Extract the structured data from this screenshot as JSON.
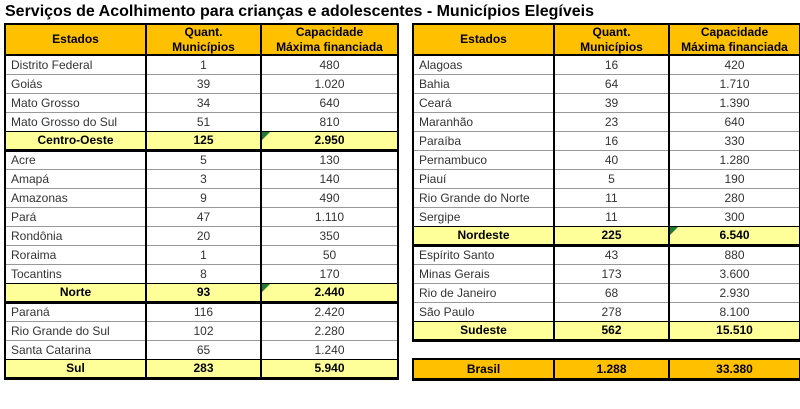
{
  "title": "Serviços de Acolhimento para crianças e adolescentes - Municípios Elegíveis",
  "colors": {
    "header_bg": "#FFC000",
    "subtotal_bg": "#FFFF99",
    "total_bg": "#FFC000",
    "flag_green": "#1E7B34"
  },
  "columns": {
    "estados": "Estados",
    "quant": "Quant.\nMunicípios",
    "cap": "Capacidade\nMáxima financiada"
  },
  "left_table": {
    "rows": [
      {
        "type": "data",
        "estado": "Distrito Federal",
        "quant": "1",
        "cap": "480"
      },
      {
        "type": "data",
        "estado": "Goiás",
        "quant": "39",
        "cap": "1.020"
      },
      {
        "type": "data",
        "estado": "Mato Grosso",
        "quant": "34",
        "cap": "640"
      },
      {
        "type": "data",
        "estado": "Mato Grosso do Sul",
        "quant": "51",
        "cap": "810"
      },
      {
        "type": "subtotal",
        "estado": "Centro-Oeste",
        "quant": "125",
        "cap": "2.950",
        "marker": true
      },
      {
        "type": "data",
        "estado": "Acre",
        "quant": "5",
        "cap": "130"
      },
      {
        "type": "data",
        "estado": "Amapá",
        "quant": "3",
        "cap": "140"
      },
      {
        "type": "data",
        "estado": "Amazonas",
        "quant": "9",
        "cap": "490"
      },
      {
        "type": "data",
        "estado": "Pará",
        "quant": "47",
        "cap": "1.110"
      },
      {
        "type": "data",
        "estado": "Rondônia",
        "quant": "20",
        "cap": "350"
      },
      {
        "type": "data",
        "estado": "Roraima",
        "quant": "1",
        "cap": "50"
      },
      {
        "type": "data",
        "estado": "Tocantins",
        "quant": "8",
        "cap": "170"
      },
      {
        "type": "subtotal",
        "estado": "Norte",
        "quant": "93",
        "cap": "2.440",
        "marker": true
      },
      {
        "type": "data",
        "estado": "Paraná",
        "quant": "116",
        "cap": "2.420"
      },
      {
        "type": "data",
        "estado": "Rio Grande do Sul",
        "quant": "102",
        "cap": "2.280"
      },
      {
        "type": "data",
        "estado": "Santa Catarina",
        "quant": "65",
        "cap": "1.240"
      },
      {
        "type": "subtotal",
        "estado": "Sul",
        "quant": "283",
        "cap": "5.940",
        "marker": false
      }
    ]
  },
  "right_table": {
    "rows": [
      {
        "type": "data",
        "estado": "Alagoas",
        "quant": "16",
        "cap": "420"
      },
      {
        "type": "data",
        "estado": "Bahia",
        "quant": "64",
        "cap": "1.710"
      },
      {
        "type": "data",
        "estado": "Ceará",
        "quant": "39",
        "cap": "1.390"
      },
      {
        "type": "data",
        "estado": "Maranhão",
        "quant": "23",
        "cap": "640"
      },
      {
        "type": "data",
        "estado": "Paraíba",
        "quant": "16",
        "cap": "330"
      },
      {
        "type": "data",
        "estado": "Pernambuco",
        "quant": "40",
        "cap": "1.280"
      },
      {
        "type": "data",
        "estado": "Piauí",
        "quant": "5",
        "cap": "190"
      },
      {
        "type": "data",
        "estado": "Rio Grande do Norte",
        "quant": "11",
        "cap": "280"
      },
      {
        "type": "data",
        "estado": "Sergipe",
        "quant": "11",
        "cap": "300"
      },
      {
        "type": "subtotal",
        "estado": "Nordeste",
        "quant": "225",
        "cap": "6.540",
        "marker": true
      },
      {
        "type": "data",
        "estado": "Espírito Santo",
        "quant": "43",
        "cap": "880"
      },
      {
        "type": "data",
        "estado": "Minas Gerais",
        "quant": "173",
        "cap": "3.600"
      },
      {
        "type": "data",
        "estado": "Rio de Janeiro",
        "quant": "68",
        "cap": "2.930"
      },
      {
        "type": "data",
        "estado": "São Paulo",
        "quant": "278",
        "cap": "8.100"
      },
      {
        "type": "subtotal",
        "estado": "Sudeste",
        "quant": "562",
        "cap": "15.510",
        "marker": false
      }
    ]
  },
  "total": {
    "estado": "Brasil",
    "quant": "1.288",
    "cap": "33.380"
  }
}
